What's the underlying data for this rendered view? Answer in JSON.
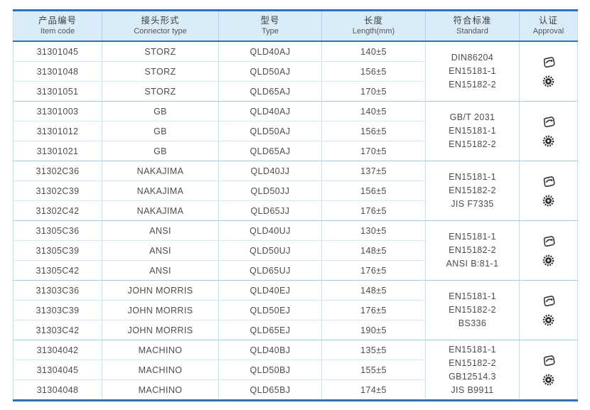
{
  "colors": {
    "accent_border": "#2a72ba",
    "header_bg": "#d9ecf8",
    "row_line": "#cdeaf6",
    "group_line": "#9ed3ec",
    "text": "#4d4d4d",
    "icon": "#3a3a3a"
  },
  "table": {
    "columns": [
      {
        "key": "item_code",
        "zh": "产品编号",
        "en": "Item code"
      },
      {
        "key": "connector_type",
        "zh": "接头形式",
        "en": "Connector type"
      },
      {
        "key": "type",
        "zh": "型号",
        "en": "Type"
      },
      {
        "key": "length",
        "zh": "长度",
        "en": "Length(mm)"
      },
      {
        "key": "standard",
        "zh": "符合标准",
        "en": "Standard"
      },
      {
        "key": "approval",
        "zh": "认证",
        "en": "Approval"
      }
    ],
    "groups": [
      {
        "rows": [
          {
            "item_code": "31301045",
            "connector_type": "STORZ",
            "type": "QLD40AJ",
            "length": "140±5"
          },
          {
            "item_code": "31301048",
            "connector_type": "STORZ",
            "type": "QLD50AJ",
            "length": "156±5"
          },
          {
            "item_code": "31301051",
            "connector_type": "STORZ",
            "type": "QLD65AJ",
            "length": "170±5"
          }
        ],
        "standards": [
          "DIN86204",
          "EN15181-1",
          "EN15182-2"
        ],
        "approval_icons": [
          "approval-stamp-icon",
          "approval-seal-icon"
        ]
      },
      {
        "rows": [
          {
            "item_code": "31301003",
            "connector_type": "GB",
            "type": "QLD40AJ",
            "length": "140±5"
          },
          {
            "item_code": "31301012",
            "connector_type": "GB",
            "type": "QLD50AJ",
            "length": "156±5"
          },
          {
            "item_code": "31301021",
            "connector_type": "GB",
            "type": "QLD65AJ",
            "length": "170±5"
          }
        ],
        "standards": [
          "GB/T 2031",
          "EN15181-1",
          "EN15182-2"
        ],
        "approval_icons": [
          "approval-stamp-icon",
          "approval-seal-icon"
        ]
      },
      {
        "rows": [
          {
            "item_code": "31302C36",
            "connector_type": "NAKAJIMA",
            "type": "QLD40JJ",
            "length": "137±5"
          },
          {
            "item_code": "31302C39",
            "connector_type": "NAKAJIMA",
            "type": "QLD50JJ",
            "length": "156±5"
          },
          {
            "item_code": "31302C42",
            "connector_type": "NAKAJIMA",
            "type": "QLD65JJ",
            "length": "176±5"
          }
        ],
        "standards": [
          "EN15181-1",
          "EN15182-2",
          "JIS F7335"
        ],
        "approval_icons": [
          "approval-stamp-icon",
          "approval-seal-icon"
        ]
      },
      {
        "rows": [
          {
            "item_code": "31305C36",
            "connector_type": "ANSI",
            "type": "QLD40UJ",
            "length": "130±5"
          },
          {
            "item_code": "31305C39",
            "connector_type": "ANSI",
            "type": "QLD50UJ",
            "length": "148±5"
          },
          {
            "item_code": "31305C42",
            "connector_type": "ANSI",
            "type": "QLD65UJ",
            "length": "176±5"
          }
        ],
        "standards": [
          "EN15181-1",
          "EN15182-2",
          "ANSI B:81-1"
        ],
        "approval_icons": [
          "approval-stamp-icon",
          "approval-seal-icon"
        ]
      },
      {
        "rows": [
          {
            "item_code": "31303C36",
            "connector_type": "JOHN MORRIS",
            "type": "QLD40EJ",
            "length": "148±5"
          },
          {
            "item_code": "31303C39",
            "connector_type": "JOHN MORRIS",
            "type": "QLD50EJ",
            "length": "176±5"
          },
          {
            "item_code": "31303C42",
            "connector_type": "JOHN MORRIS",
            "type": "QLD65EJ",
            "length": "190±5"
          }
        ],
        "standards": [
          "EN15181-1",
          "EN15182-2",
          "BS336"
        ],
        "approval_icons": [
          "approval-stamp-icon",
          "approval-seal-icon"
        ]
      },
      {
        "rows": [
          {
            "item_code": "31304042",
            "connector_type": "MACHINO",
            "type": "QLD40BJ",
            "length": "135±5"
          },
          {
            "item_code": "31304045",
            "connector_type": "MACHINO",
            "type": "QLD50BJ",
            "length": "155±5"
          },
          {
            "item_code": "31304048",
            "connector_type": "MACHINO",
            "type": "QLD65BJ",
            "length": "174±5"
          }
        ],
        "standards": [
          "EN15181-1",
          "EN15182-2",
          "GB12514.3",
          "JIS B9911"
        ],
        "approval_icons": [
          "approval-stamp-icon",
          "approval-seal-icon"
        ]
      }
    ]
  }
}
